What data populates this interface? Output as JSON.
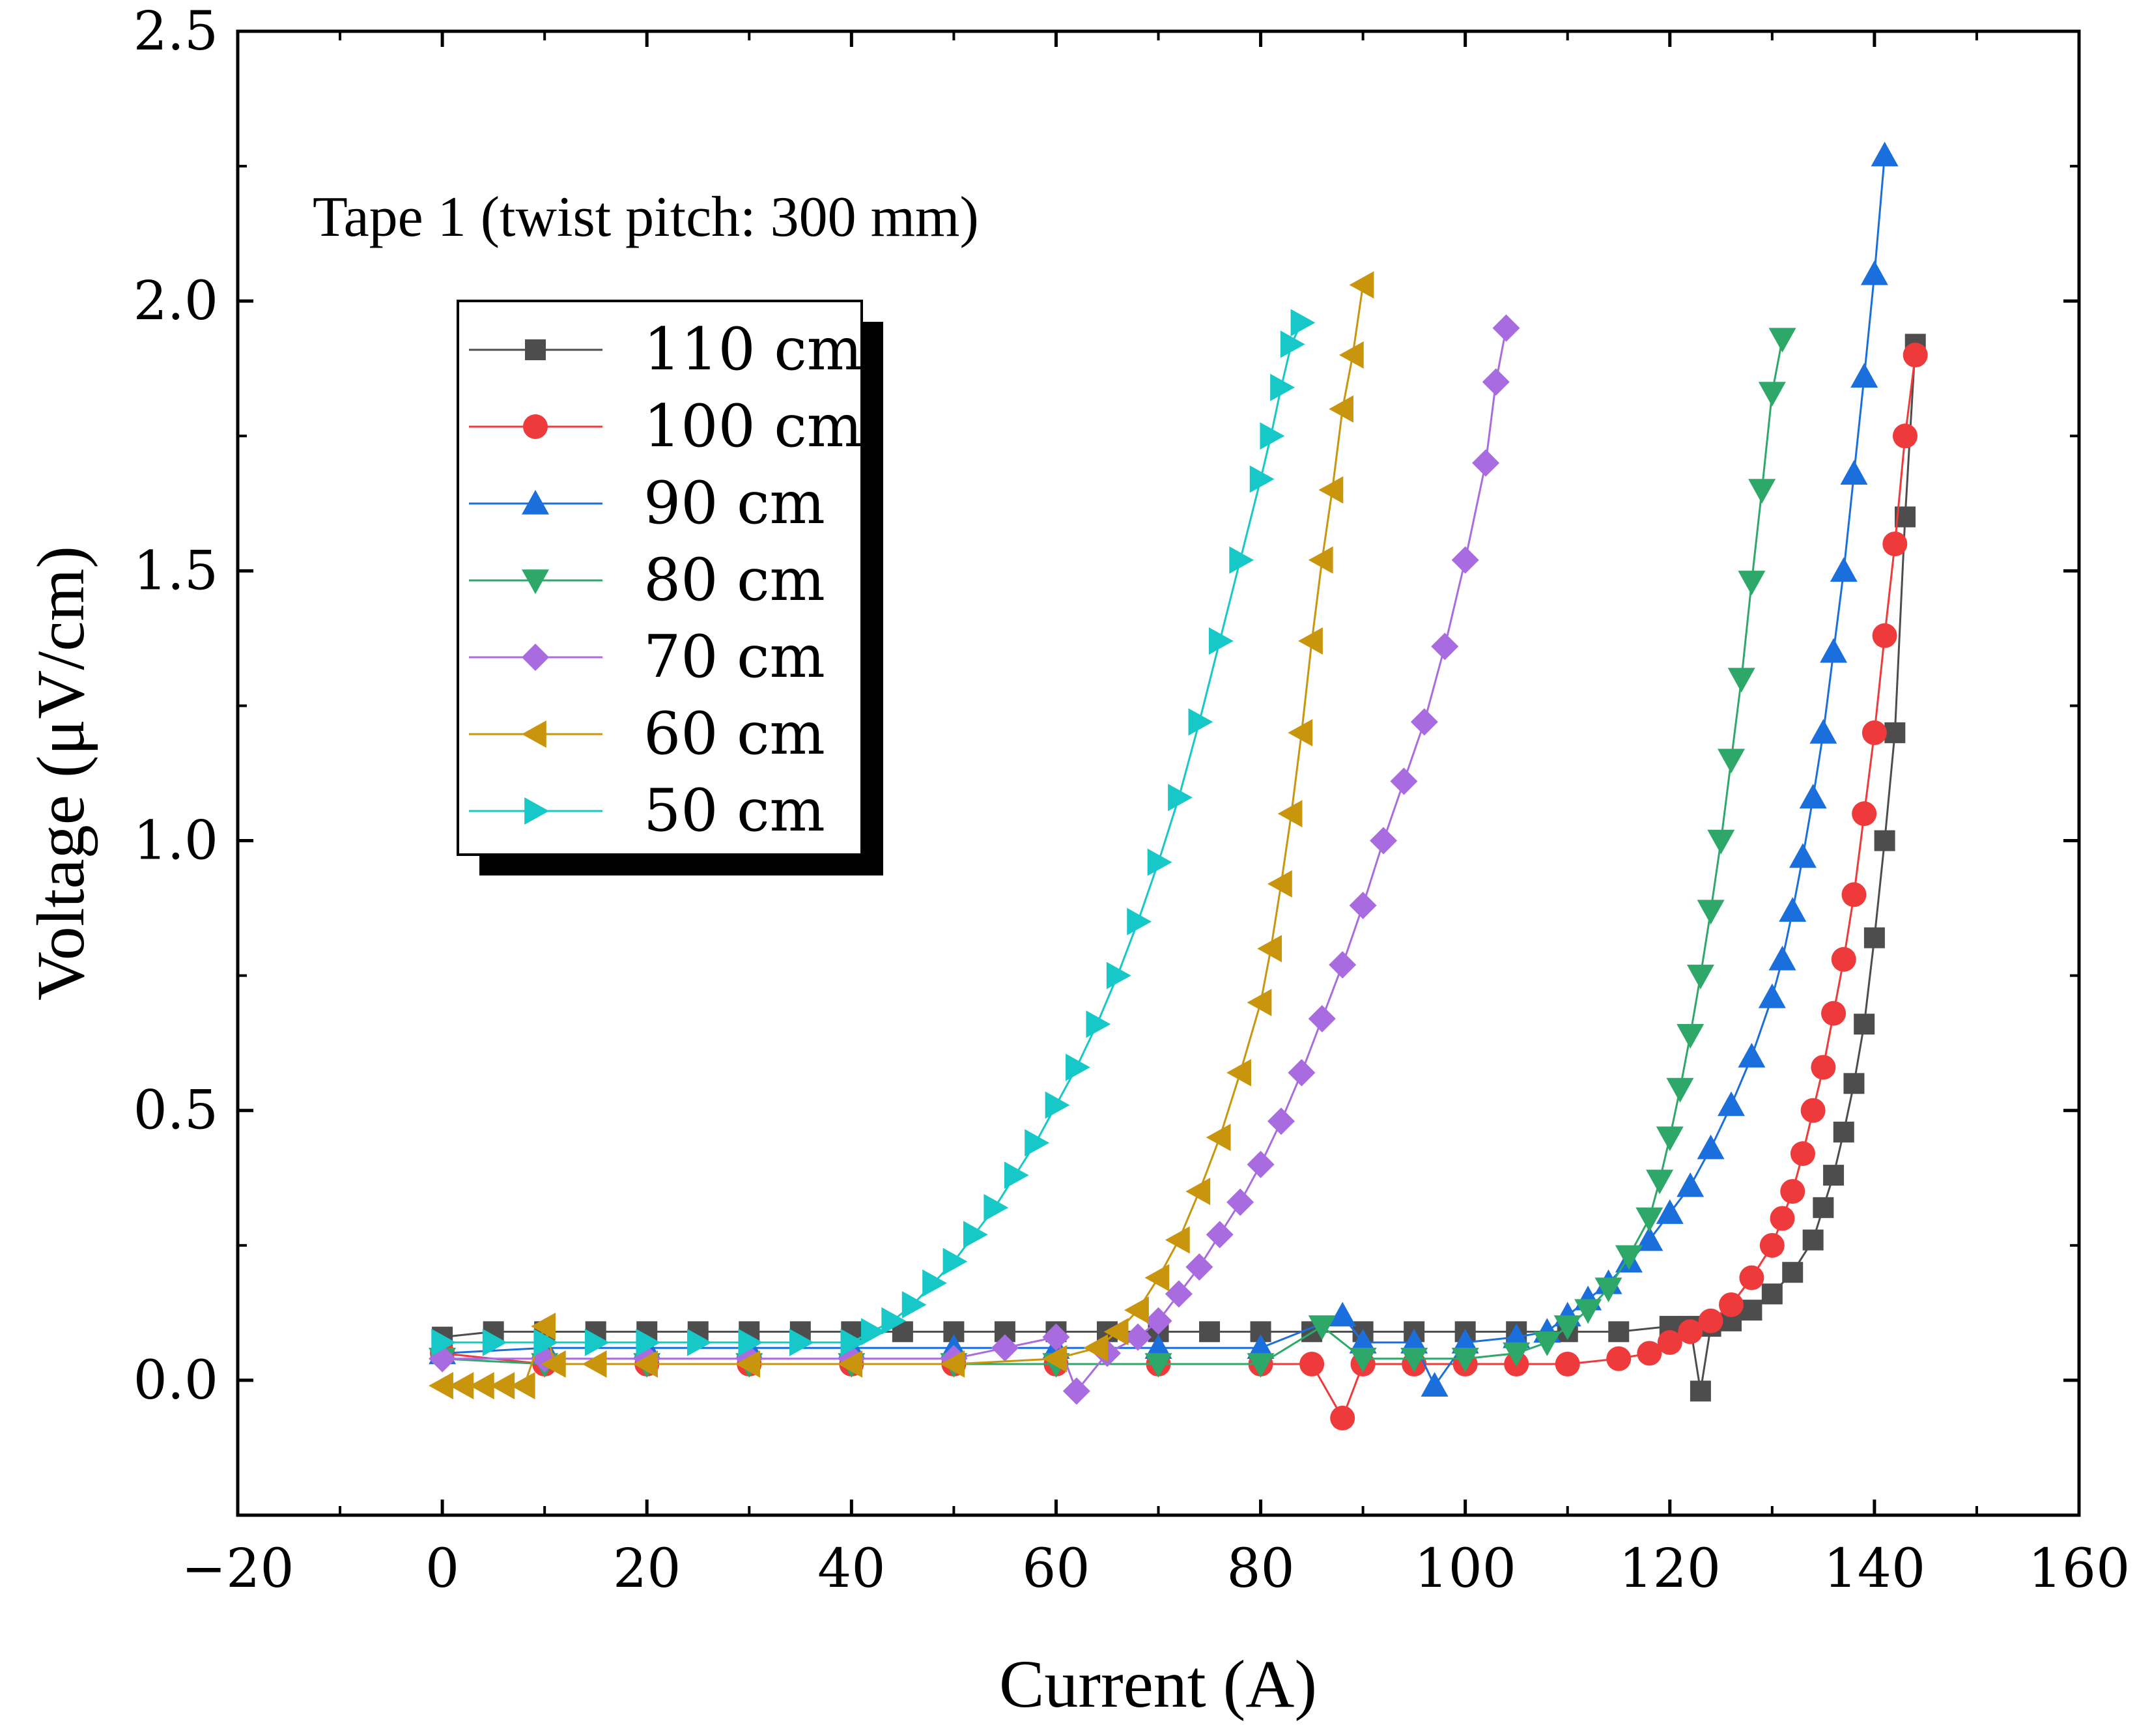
{
  "chart_data": {
    "type": "line",
    "title": "",
    "annotation": "Tape 1 (twist pitch: 300 mm)",
    "xlabel": "Current (A)",
    "ylabel": "Voltage (μV/cm)",
    "xlim": [
      -20,
      160
    ],
    "ylim": [
      -0.25,
      2.5
    ],
    "xticks": [
      -20,
      0,
      20,
      40,
      60,
      80,
      100,
      120,
      140,
      160
    ],
    "xtick_labels": [
      "−20",
      "0",
      "20",
      "40",
      "60",
      "80",
      "100",
      "120",
      "140",
      "160"
    ],
    "yticks": [
      0.0,
      0.5,
      1.0,
      1.5,
      2.0,
      2.5
    ],
    "ytick_labels": [
      "0.0",
      "0.5",
      "1.0",
      "1.5",
      "2.0",
      "2.5"
    ],
    "legend_position": "upper-left",
    "series": [
      {
        "name": "110 cm",
        "color": "#4d4d4d",
        "marker": "square",
        "x": [
          0,
          5,
          10,
          15,
          20,
          25,
          30,
          35,
          40,
          45,
          50,
          55,
          60,
          65,
          70,
          75,
          80,
          85,
          90,
          95,
          100,
          105,
          110,
          115,
          120,
          122,
          123,
          124,
          126,
          128,
          130,
          132,
          134,
          135,
          136,
          137,
          138,
          139,
          140,
          141,
          142,
          143,
          144
        ],
        "y": [
          0.08,
          0.09,
          0.09,
          0.09,
          0.09,
          0.09,
          0.09,
          0.09,
          0.09,
          0.09,
          0.09,
          0.09,
          0.09,
          0.09,
          0.09,
          0.09,
          0.09,
          0.09,
          0.09,
          0.09,
          0.09,
          0.09,
          0.09,
          0.09,
          0.1,
          0.1,
          -0.02,
          0.1,
          0.11,
          0.13,
          0.16,
          0.2,
          0.26,
          0.32,
          0.38,
          0.46,
          0.55,
          0.66,
          0.82,
          1.0,
          1.2,
          1.6,
          1.92
        ]
      },
      {
        "name": "100 cm",
        "color": "#ee3a3a",
        "marker": "circle",
        "x": [
          0,
          10,
          20,
          30,
          40,
          50,
          60,
          70,
          80,
          85,
          88,
          90,
          95,
          100,
          105,
          110,
          115,
          118,
          120,
          122,
          124,
          126,
          128,
          130,
          131,
          132,
          133,
          134,
          135,
          136,
          137,
          138,
          139,
          140,
          141,
          142,
          143,
          144
        ],
        "y": [
          0.05,
          0.03,
          0.03,
          0.03,
          0.03,
          0.03,
          0.03,
          0.03,
          0.03,
          0.03,
          -0.07,
          0.03,
          0.03,
          0.03,
          0.03,
          0.03,
          0.04,
          0.05,
          0.07,
          0.09,
          0.11,
          0.14,
          0.19,
          0.25,
          0.3,
          0.35,
          0.42,
          0.5,
          0.58,
          0.68,
          0.78,
          0.9,
          1.05,
          1.2,
          1.38,
          1.55,
          1.75,
          1.9
        ]
      },
      {
        "name": "90 cm",
        "color": "#1a6fdc",
        "marker": "triangle-up",
        "x": [
          0,
          10,
          20,
          30,
          40,
          50,
          60,
          70,
          80,
          88,
          90,
          95,
          97,
          100,
          105,
          108,
          110,
          112,
          114,
          116,
          118,
          120,
          122,
          124,
          126,
          128,
          130,
          131,
          132,
          133,
          134,
          135,
          136,
          137,
          138,
          139,
          140,
          141
        ],
        "y": [
          0.05,
          0.06,
          0.06,
          0.06,
          0.06,
          0.06,
          0.06,
          0.06,
          0.06,
          0.12,
          0.07,
          0.07,
          -0.01,
          0.07,
          0.08,
          0.09,
          0.12,
          0.15,
          0.18,
          0.22,
          0.26,
          0.31,
          0.36,
          0.43,
          0.51,
          0.6,
          0.71,
          0.78,
          0.87,
          0.97,
          1.08,
          1.2,
          1.35,
          1.5,
          1.68,
          1.86,
          2.05,
          2.27
        ]
      },
      {
        "name": "80 cm",
        "color": "#2ea868",
        "marker": "triangle-down",
        "x": [
          0,
          10,
          20,
          30,
          40,
          50,
          60,
          70,
          80,
          86,
          90,
          95,
          100,
          105,
          108,
          110,
          112,
          114,
          116,
          118,
          119,
          120,
          121,
          122,
          123,
          124,
          125,
          126,
          127,
          128,
          129,
          130,
          131
        ],
        "y": [
          0.04,
          0.03,
          0.03,
          0.03,
          0.03,
          0.03,
          0.03,
          0.03,
          0.03,
          0.1,
          0.04,
          0.04,
          0.04,
          0.05,
          0.07,
          0.1,
          0.13,
          0.17,
          0.23,
          0.3,
          0.37,
          0.45,
          0.54,
          0.64,
          0.75,
          0.87,
          1.0,
          1.15,
          1.3,
          1.48,
          1.65,
          1.83,
          1.93
        ]
      },
      {
        "name": "70 cm",
        "color": "#a96ce0",
        "marker": "diamond",
        "x": [
          0,
          10,
          20,
          30,
          40,
          50,
          55,
          60,
          62,
          65,
          68,
          70,
          72,
          74,
          76,
          78,
          80,
          82,
          84,
          86,
          88,
          90,
          92,
          94,
          96,
          98,
          100,
          102,
          103,
          104
        ],
        "y": [
          0.04,
          0.04,
          0.04,
          0.04,
          0.04,
          0.04,
          0.06,
          0.08,
          -0.02,
          0.05,
          0.08,
          0.11,
          0.16,
          0.21,
          0.27,
          0.33,
          0.4,
          0.48,
          0.57,
          0.67,
          0.77,
          0.88,
          1.0,
          1.11,
          1.22,
          1.36,
          1.52,
          1.7,
          1.85,
          1.95
        ]
      },
      {
        "name": "60 cm",
        "color": "#c9950d",
        "marker": "triangle-left",
        "x": [
          0,
          2,
          4,
          6,
          8,
          10,
          11,
          15,
          20,
          30,
          40,
          50,
          60,
          64,
          66,
          68,
          70,
          72,
          74,
          76,
          78,
          80,
          81,
          82,
          83,
          84,
          85,
          86,
          87,
          88,
          89,
          90
        ],
        "y": [
          -0.01,
          -0.01,
          -0.01,
          -0.01,
          -0.01,
          0.1,
          0.03,
          0.03,
          0.03,
          0.03,
          0.03,
          0.03,
          0.04,
          0.06,
          0.09,
          0.13,
          0.19,
          0.26,
          0.35,
          0.45,
          0.57,
          0.7,
          0.8,
          0.92,
          1.05,
          1.2,
          1.37,
          1.52,
          1.65,
          1.8,
          1.9,
          2.03
        ]
      },
      {
        "name": "50 cm",
        "color": "#16c8c8",
        "marker": "triangle-right",
        "x": [
          0,
          5,
          10,
          15,
          20,
          25,
          30,
          35,
          40,
          42,
          44,
          46,
          48,
          50,
          52,
          54,
          56,
          58,
          60,
          62,
          64,
          66,
          68,
          70,
          72,
          74,
          76,
          78,
          80,
          81,
          82,
          83,
          84
        ],
        "y": [
          0.07,
          0.07,
          0.07,
          0.07,
          0.07,
          0.07,
          0.07,
          0.07,
          0.07,
          0.09,
          0.11,
          0.14,
          0.18,
          0.22,
          0.27,
          0.32,
          0.38,
          0.44,
          0.51,
          0.58,
          0.66,
          0.75,
          0.85,
          0.96,
          1.08,
          1.22,
          1.37,
          1.52,
          1.67,
          1.75,
          1.84,
          1.92,
          1.96
        ]
      }
    ]
  }
}
